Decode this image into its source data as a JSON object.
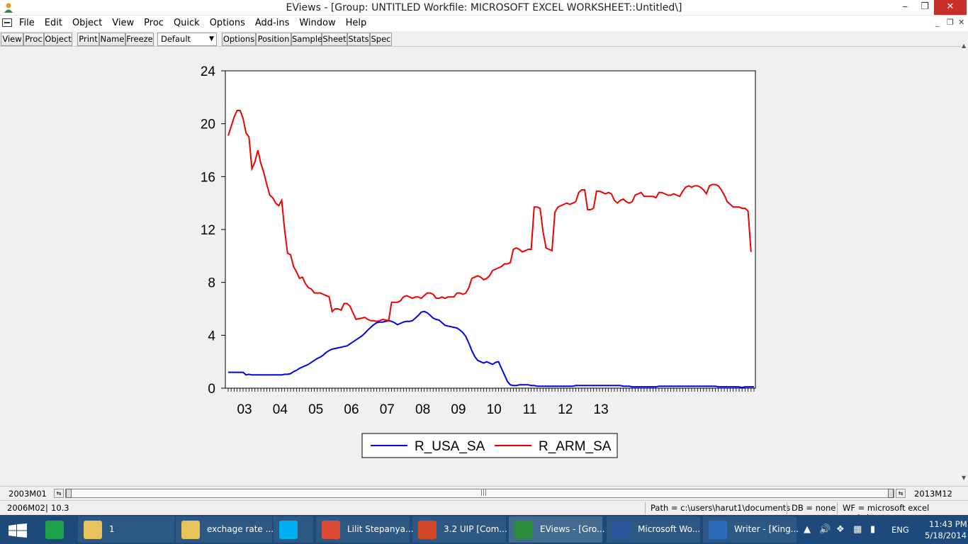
{
  "window": {
    "title": "EViews - [Group: UNTITLED    Workfile: MICROSOFT EXCEL WORKSHEET::Untitled\\]",
    "minimize": "‒",
    "restore": "❐",
    "close": "✕",
    "mdi_minimize": "_",
    "mdi_restore": "❐",
    "mdi_close": "✕"
  },
  "menu": [
    "File",
    "Edit",
    "Object",
    "View",
    "Proc",
    "Quick",
    "Options",
    "Add-ins",
    "Window",
    "Help"
  ],
  "toolbar": {
    "buttons_left": [
      "View",
      "Proc",
      "Object"
    ],
    "buttons_mid": [
      "Print",
      "Name",
      "Freeze"
    ],
    "select_value": "Default",
    "buttons_right": [
      "Options",
      "Position",
      "Sample",
      "Sheet",
      "Stats",
      "Spec"
    ]
  },
  "chart_data": {
    "type": "line",
    "x_tick_labels": [
      "03",
      "04",
      "05",
      "06",
      "07",
      "08",
      "09",
      "10",
      "11",
      "12",
      "13"
    ],
    "ylim": [
      0,
      24
    ],
    "y_ticks": [
      0,
      4,
      8,
      12,
      16,
      20,
      24
    ],
    "legend_placement": "bottom-center",
    "start_period": "2003M01",
    "end_period": "2013M12",
    "series": [
      {
        "name": "R_USA_SA",
        "color": "#0000ee",
        "values": [
          1.2,
          1.2,
          1.2,
          1.2,
          1.2,
          1.2,
          1.0,
          1.05,
          1.0,
          1.0,
          1.0,
          1.0,
          1.0,
          1.0,
          1.0,
          1.0,
          1.0,
          1.0,
          1.0,
          1.05,
          1.05,
          1.1,
          1.25,
          1.35,
          1.5,
          1.6,
          1.7,
          1.8,
          1.95,
          2.1,
          2.25,
          2.35,
          2.5,
          2.7,
          2.85,
          2.95,
          3.0,
          3.05,
          3.1,
          3.15,
          3.2,
          3.35,
          3.5,
          3.65,
          3.8,
          3.95,
          4.15,
          4.4,
          4.6,
          4.8,
          4.95,
          5.0,
          5.0,
          5.05,
          5.1,
          5.05,
          4.95,
          4.8,
          4.9,
          5.0,
          5.05,
          5.05,
          5.1,
          5.3,
          5.5,
          5.75,
          5.8,
          5.7,
          5.5,
          5.3,
          5.2,
          5.15,
          4.95,
          4.75,
          4.7,
          4.65,
          4.6,
          4.55,
          4.4,
          4.2,
          3.9,
          3.4,
          2.85,
          2.4,
          2.1,
          2.0,
          1.9,
          2.0,
          1.9,
          1.8,
          1.95,
          2.0,
          1.5,
          1.0,
          0.5,
          0.25,
          0.2,
          0.2,
          0.25,
          0.25,
          0.25,
          0.25,
          0.2,
          0.2,
          0.15,
          0.15,
          0.15,
          0.15,
          0.15,
          0.15,
          0.15,
          0.15,
          0.15,
          0.15,
          0.15,
          0.15,
          0.15,
          0.2,
          0.2,
          0.2,
          0.2,
          0.2,
          0.2,
          0.2,
          0.2,
          0.2,
          0.2,
          0.2,
          0.2,
          0.2,
          0.2,
          0.2,
          0.2,
          0.15,
          0.15,
          0.15,
          0.1,
          0.1,
          0.1,
          0.1,
          0.1,
          0.1,
          0.1,
          0.1,
          0.1,
          0.15,
          0.15,
          0.15,
          0.15,
          0.15,
          0.15,
          0.15,
          0.15,
          0.15,
          0.15,
          0.15,
          0.15,
          0.15,
          0.15,
          0.15,
          0.15,
          0.15,
          0.15,
          0.15,
          0.15,
          0.1,
          0.1,
          0.1,
          0.1,
          0.1,
          0.1,
          0.1,
          0.1,
          0.05,
          0.1,
          0.1,
          0.1,
          0.1
        ]
      },
      {
        "name": "R_ARM_SA",
        "color": "#ee0000",
        "values": [
          19.1,
          19.8,
          20.5,
          21.0,
          21.0,
          20.4,
          19.3,
          19.0,
          16.6,
          17.1,
          18.0,
          17.0,
          16.3,
          15.4,
          14.6,
          14.4,
          14.0,
          13.8,
          14.2,
          12.0,
          10.2,
          10.1,
          9.2,
          8.8,
          8.3,
          8.4,
          7.9,
          7.6,
          7.5,
          7.2,
          7.2,
          7.2,
          7.1,
          7.0,
          6.9,
          5.8,
          6.0,
          6.0,
          5.9,
          6.4,
          6.4,
          6.2,
          5.7,
          5.2,
          5.25,
          5.3,
          5.35,
          5.2,
          5.1,
          5.1,
          5.05,
          5.1,
          5.2,
          5.15,
          5.1,
          6.5,
          6.5,
          6.5,
          6.6,
          6.9,
          7.0,
          6.9,
          6.8,
          6.9,
          6.9,
          6.8,
          7.0,
          7.2,
          7.2,
          7.1,
          6.8,
          6.8,
          6.9,
          6.8,
          6.9,
          6.9,
          6.9,
          7.2,
          7.2,
          7.1,
          7.2,
          7.6,
          8.3,
          8.4,
          8.5,
          8.4,
          8.2,
          8.3,
          8.5,
          8.9,
          9.0,
          9.1,
          9.2,
          9.4,
          9.4,
          9.5,
          10.5,
          10.6,
          10.5,
          10.3,
          10.4,
          10.5,
          10.5,
          13.7,
          13.7,
          13.6,
          11.8,
          10.6,
          10.5,
          10.4,
          13.3,
          13.7,
          13.8,
          13.9,
          14.0,
          13.9,
          14.0,
          14.1,
          14.8,
          15.0,
          15.0,
          13.5,
          13.5,
          13.6,
          14.9,
          14.9,
          14.8,
          14.7,
          14.8,
          14.7,
          14.2,
          14.0,
          14.2,
          14.3,
          14.1,
          14.0,
          14.1,
          14.6,
          14.7,
          14.8,
          14.5,
          14.5,
          14.5,
          14.5,
          14.4,
          14.8,
          14.8,
          14.7,
          14.6,
          14.6,
          14.7,
          14.6,
          14.5,
          14.9,
          15.2,
          15.3,
          15.2,
          15.3,
          15.3,
          15.2,
          15.0,
          14.7,
          15.3,
          15.4,
          15.4,
          15.3,
          15.0,
          14.6,
          14.1,
          13.9,
          13.7,
          13.7,
          13.7,
          13.6,
          13.6,
          13.4,
          10.3
        ]
      }
    ]
  },
  "scroll": {
    "start": "2003M01",
    "end": "2013M12"
  },
  "status": {
    "cell": "2006M02",
    "value": "10.3",
    "path": "Path = c:\\users\\harut1\\documents",
    "db": "DB = none",
    "wf": "WF = microsoft excel worksheet"
  },
  "taskbar": {
    "items": [
      {
        "label": "1",
        "icon": "folder-icon",
        "color": "#e8c25a"
      },
      {
        "label": "exchage rate ...",
        "icon": "folder-icon",
        "color": "#e8c25a"
      },
      {
        "label": "",
        "icon": "skype-icon",
        "color": "#00aff0"
      },
      {
        "label": "Lilit Stepanya...",
        "icon": "chrome-icon",
        "color": "#dd4b39"
      },
      {
        "label": "3.2 UIP [Com...",
        "icon": "powerpoint-icon",
        "color": "#d24726"
      },
      {
        "label": "EViews - [Gro...",
        "icon": "eviews-icon",
        "color": "#2a8c3c"
      },
      {
        "label": "Microsoft Wo...",
        "icon": "word-icon",
        "color": "#2b579a"
      },
      {
        "label": "Writer - [King...",
        "icon": "writer-icon",
        "color": "#2a6ebb"
      }
    ],
    "lang": "ENG",
    "time": "11:43 PM",
    "date": "5/18/2014"
  }
}
